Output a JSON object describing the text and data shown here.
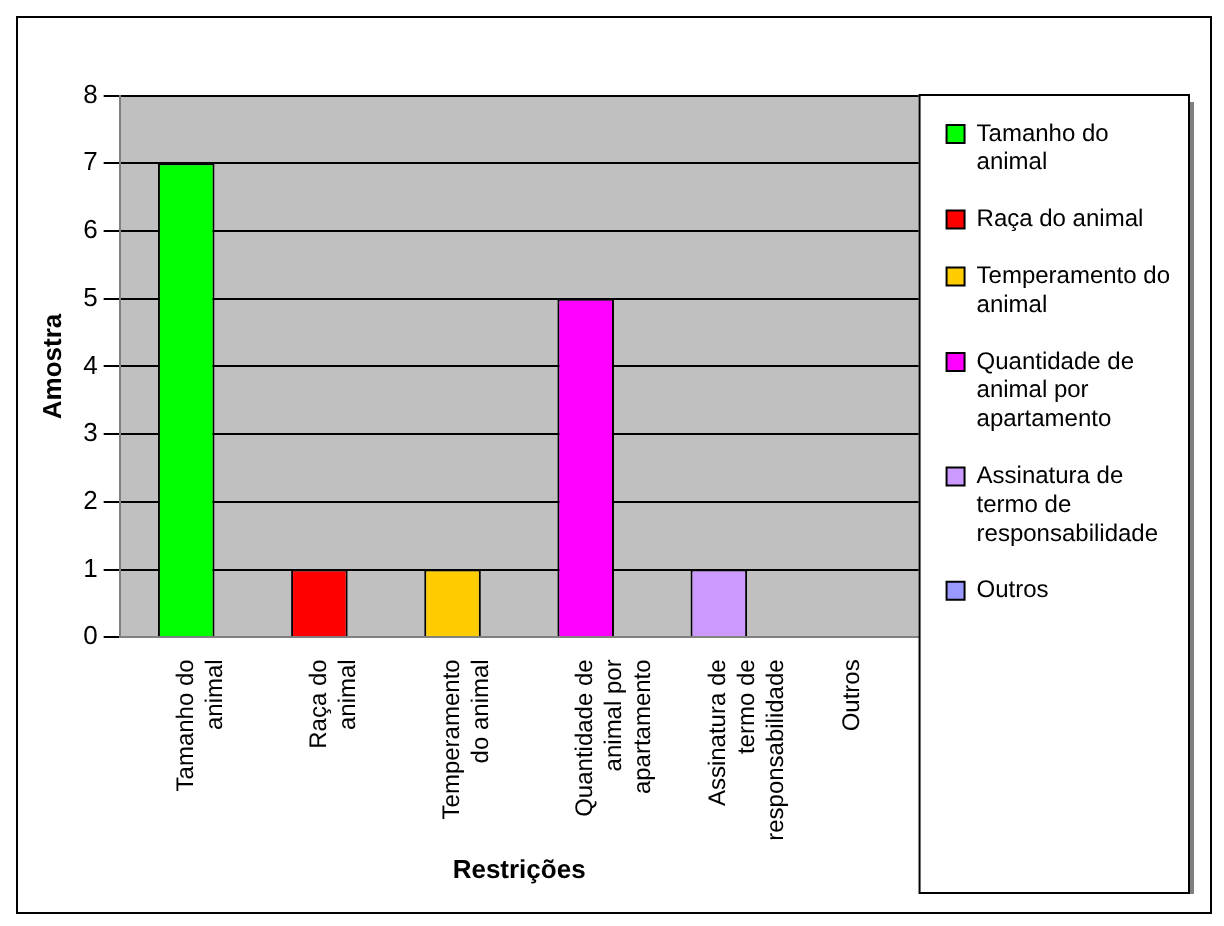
{
  "chart_data": {
    "type": "bar",
    "xlabel": "Restrições",
    "ylabel": "Amostra",
    "categories": [
      "Tamanho do animal",
      "Raça do animal",
      "Temperamento do animal",
      "Quantidade de animal por apartamento",
      "Assinatura de termo de responsabilidade",
      "Outros"
    ],
    "series": [
      {
        "name": "Tamanho do animal",
        "color": "#00ff00",
        "values": [
          7,
          null,
          null,
          null,
          null,
          null
        ]
      },
      {
        "name": "Raça do animal",
        "color": "#ff0000",
        "values": [
          null,
          1,
          null,
          null,
          null,
          null
        ]
      },
      {
        "name": "Temperamento do animal",
        "color": "#ffcc00",
        "values": [
          null,
          null,
          1,
          null,
          null,
          null
        ]
      },
      {
        "name": "Quantidade de animal por apartamento",
        "color": "#ff00ff",
        "values": [
          null,
          null,
          null,
          5,
          null,
          null
        ]
      },
      {
        "name": "Assinatura de termo de responsabilidade",
        "color": "#cc99ff",
        "values": [
          null,
          null,
          null,
          null,
          1,
          null
        ]
      },
      {
        "name": "Outros",
        "color": "#9999ff",
        "values": [
          null,
          null,
          null,
          null,
          null,
          0
        ]
      }
    ],
    "ylim": [
      0,
      8
    ],
    "yticks": [
      0,
      1,
      2,
      3,
      4,
      5,
      6,
      7,
      8
    ],
    "grid": "y",
    "legend": "right"
  }
}
